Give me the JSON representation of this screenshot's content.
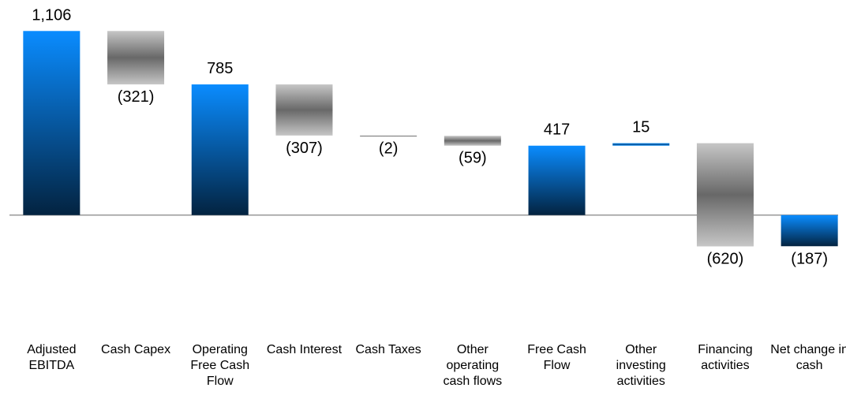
{
  "chart_data": {
    "type": "waterfall",
    "categories": [
      "Adjusted EBITDA",
      "Cash Capex",
      "Operating Free Cash Flow",
      "Cash Interest",
      "Cash Taxes",
      "Other operating cash flows",
      "Free Cash Flow",
      "Other investing activities",
      "Financing activities",
      "Net change in cash"
    ],
    "values": [
      1106,
      -321,
      785,
      -307,
      -2,
      -59,
      417,
      15,
      -620,
      -187
    ],
    "value_labels": [
      "1,106",
      "(321)",
      "785",
      "(307)",
      "(2)",
      "(59)",
      "417",
      "15",
      "(620)",
      "(187)"
    ],
    "totals": [
      true,
      false,
      true,
      false,
      false,
      false,
      true,
      false,
      false,
      true
    ],
    "colors": [
      "#0a8cff",
      "#bdbdbd",
      "#0a8cff",
      "#bdbdbd",
      "#bdbdbd",
      "#bdbdbd",
      "#0a8cff",
      "#0a8cff",
      "#bdbdbd",
      "#0a8cff"
    ],
    "ylim": [
      -650,
      1150
    ]
  }
}
